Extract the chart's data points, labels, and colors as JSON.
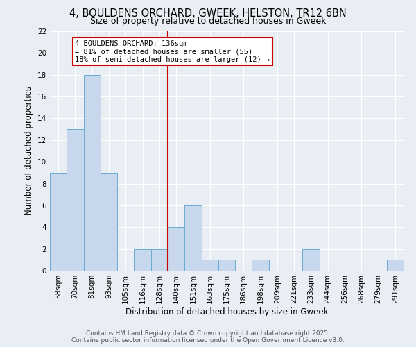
{
  "title": "4, BOULDENS ORCHARD, GWEEK, HELSTON, TR12 6BN",
  "subtitle": "Size of property relative to detached houses in Gweek",
  "xlabel": "Distribution of detached houses by size in Gweek",
  "ylabel": "Number of detached properties",
  "bin_labels": [
    "58sqm",
    "70sqm",
    "81sqm",
    "93sqm",
    "105sqm",
    "116sqm",
    "128sqm",
    "140sqm",
    "151sqm",
    "163sqm",
    "175sqm",
    "186sqm",
    "198sqm",
    "209sqm",
    "221sqm",
    "233sqm",
    "244sqm",
    "256sqm",
    "268sqm",
    "279sqm",
    "291sqm"
  ],
  "bin_counts": [
    9,
    13,
    18,
    9,
    0,
    2,
    2,
    4,
    6,
    1,
    1,
    0,
    1,
    0,
    0,
    2,
    0,
    0,
    0,
    0,
    1
  ],
  "bar_color": "#c8d8ec",
  "bar_edge_color": "#6aaad4",
  "property_line_color": "#cc0000",
  "property_line_bin_index": 7,
  "annotation_line1": "4 BOULDENS ORCHARD: 136sqm",
  "annotation_line2": "← 81% of detached houses are smaller (55)",
  "annotation_line3": "18% of semi-detached houses are larger (12) →",
  "annotation_box_edge": "#cc0000",
  "ylim": [
    0,
    22
  ],
  "yticks": [
    0,
    2,
    4,
    6,
    8,
    10,
    12,
    14,
    16,
    18,
    20,
    22
  ],
  "fig_bg_color": "#e8eef4",
  "plot_bg_color": "#e8eef4",
  "grid_color": "#ffffff",
  "footer_line1": "Contains HM Land Registry data © Crown copyright and database right 2025.",
  "footer_line2": "Contains public sector information licensed under the Open Government Licence v3.0.",
  "title_fontsize": 10.5,
  "subtitle_fontsize": 9,
  "axis_label_fontsize": 8.5,
  "tick_fontsize": 7.5,
  "annotation_fontsize": 7.5,
  "footer_fontsize": 6.5
}
